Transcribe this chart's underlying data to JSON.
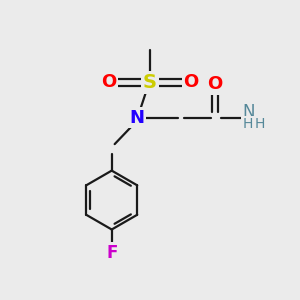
{
  "bg_color": "#ebebeb",
  "bond_color": "#1a1a1a",
  "bond_width": 1.6,
  "atom_colors": {
    "S": "#cccc00",
    "O": "#ff0000",
    "N_blue": "#2200ff",
    "N_amide": "#558899",
    "F": "#cc00cc",
    "C": "#1a1a1a"
  },
  "figsize": [
    3.0,
    3.0
  ],
  "dpi": 100,
  "xlim": [
    0,
    10
  ],
  "ylim": [
    0,
    10
  ]
}
